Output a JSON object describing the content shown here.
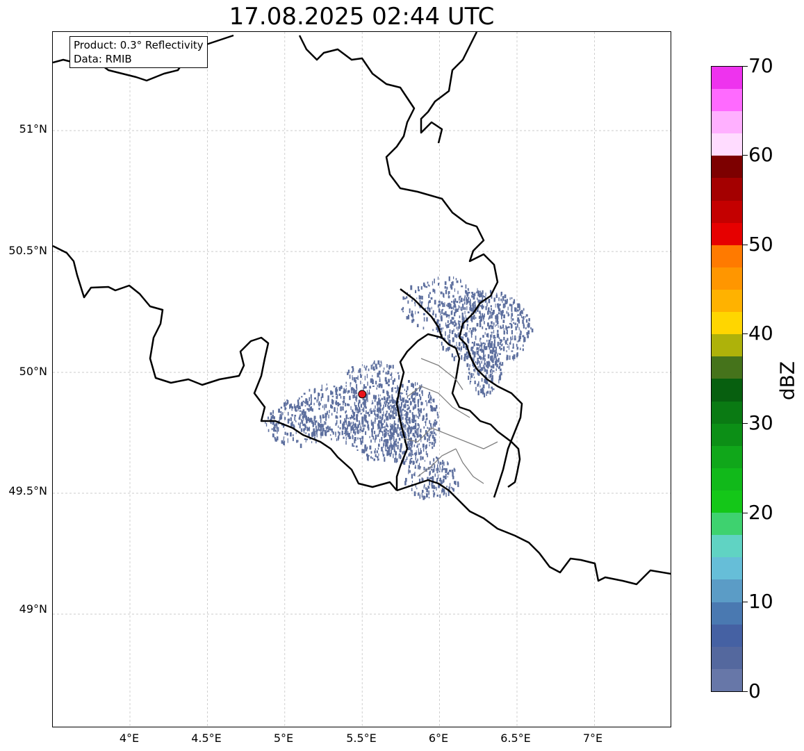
{
  "title": "17.08.2025 02:44 UTC",
  "info": {
    "product": "Product: 0.3° Reflectivity",
    "data": "Data: RMIB"
  },
  "axes": {
    "lon_ticks": [
      "4°E",
      "4.5°E",
      "5°E",
      "5.5°E",
      "6°E",
      "6.5°E",
      "7°E"
    ],
    "lat_ticks": [
      "51°N",
      "50.5°N",
      "50°N",
      "49.5°N",
      "49°N"
    ]
  },
  "radar_site": {
    "lon": 5.5,
    "lat": 49.91,
    "color": "#e8141c"
  },
  "colorbar": {
    "label": "dBZ",
    "ticks": [
      "0",
      "10",
      "20",
      "30",
      "40",
      "50",
      "60",
      "70"
    ],
    "colors": [
      "#6777a8",
      "#54689e",
      "#4561a3",
      "#4a79b1",
      "#5b9cc6",
      "#66bed8",
      "#60d3c3",
      "#3ed26f",
      "#14c718",
      "#11b91a",
      "#10a71a",
      "#0c8f16",
      "#0a7a13",
      "#075f0f",
      "#45731b",
      "#aeb20a",
      "#ffd600",
      "#ffb200",
      "#ff9600",
      "#ff7a00",
      "#e60000",
      "#c40000",
      "#a40000",
      "#7d0000",
      "#ffdcff",
      "#ffb0ff",
      "#ff6aff",
      "#ee33ee"
    ]
  },
  "colors": {
    "echo": "#5d6f9e",
    "border": "#000000",
    "admin_border": "#808080",
    "grid": "#bbbbbb"
  }
}
